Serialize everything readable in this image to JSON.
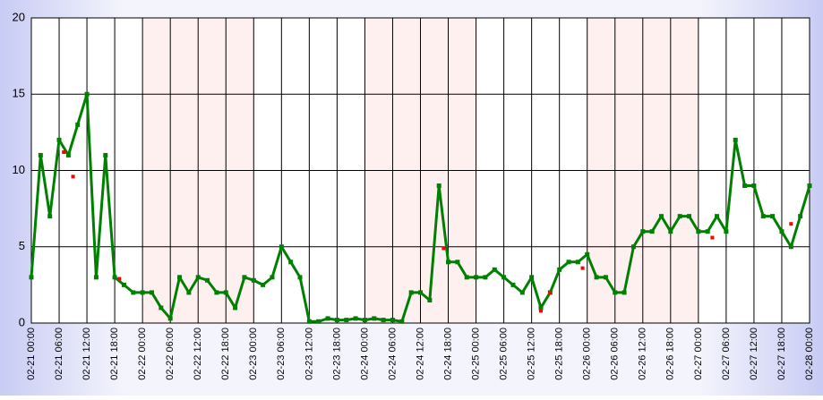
{
  "chart_data": {
    "type": "line",
    "x": [
      "02-21 00:00",
      "02-21 02:00",
      "02-21 04:00",
      "02-21 06:00",
      "02-21 08:00",
      "02-21 10:00",
      "02-21 12:00",
      "02-21 14:00",
      "02-21 16:00",
      "02-21 18:00",
      "02-21 20:00",
      "02-21 22:00",
      "02-22 00:00",
      "02-22 02:00",
      "02-22 04:00",
      "02-22 06:00",
      "02-22 08:00",
      "02-22 10:00",
      "02-22 12:00",
      "02-22 14:00",
      "02-22 16:00",
      "02-22 18:00",
      "02-22 20:00",
      "02-22 22:00",
      "02-23 00:00",
      "02-23 02:00",
      "02-23 04:00",
      "02-23 06:00",
      "02-23 08:00",
      "02-23 10:00",
      "02-23 12:00",
      "02-23 14:00",
      "02-23 16:00",
      "02-23 18:00",
      "02-23 20:00",
      "02-23 22:00",
      "02-24 00:00",
      "02-24 02:00",
      "02-24 04:00",
      "02-24 06:00",
      "02-24 08:00",
      "02-24 10:00",
      "02-24 12:00",
      "02-24 14:00",
      "02-24 16:00",
      "02-24 18:00",
      "02-24 20:00",
      "02-24 22:00",
      "02-25 00:00",
      "02-25 02:00",
      "02-25 04:00",
      "02-25 06:00",
      "02-25 08:00",
      "02-25 10:00",
      "02-25 12:00",
      "02-25 14:00",
      "02-25 16:00",
      "02-25 18:00",
      "02-25 20:00",
      "02-25 22:00",
      "02-26 00:00",
      "02-26 02:00",
      "02-26 04:00",
      "02-26 06:00",
      "02-26 08:00",
      "02-26 10:00",
      "02-26 12:00",
      "02-26 14:00",
      "02-26 16:00",
      "02-26 18:00",
      "02-26 20:00",
      "02-26 22:00",
      "02-27 00:00",
      "02-27 02:00",
      "02-27 04:00",
      "02-27 06:00",
      "02-27 08:00",
      "02-27 10:00",
      "02-27 12:00",
      "02-27 14:00",
      "02-27 16:00",
      "02-27 18:00",
      "02-27 20:00",
      "02-27 22:00",
      "02-28 00:00"
    ],
    "series": [
      {
        "color": "#008000",
        "values": [
          3,
          11,
          7,
          12,
          11,
          13,
          15,
          3,
          11,
          3,
          2.5,
          2,
          2,
          2,
          1,
          0.3,
          3,
          2,
          3,
          2.8,
          2,
          2,
          1,
          3,
          2.8,
          2.5,
          3,
          5,
          4,
          3,
          0.1,
          0.1,
          0.3,
          0.2,
          0.2,
          0.3,
          0.2,
          0.3,
          0.2,
          0.2,
          0.1,
          2,
          2,
          1.5,
          9,
          4,
          4,
          3,
          3,
          3,
          3.5,
          3,
          2.5,
          2,
          3,
          1,
          2,
          3.5,
          4,
          4,
          4.5,
          3,
          3,
          2,
          2,
          5,
          6,
          6,
          7,
          6,
          7,
          7,
          6,
          6,
          7,
          6,
          12,
          9,
          9,
          7,
          7,
          6,
          5,
          7,
          9
        ]
      }
    ],
    "markers": {
      "color": "#ff0000",
      "x": [
        "02-21 07:00",
        "02-21 09:00",
        "02-21 19:00",
        "02-24 17:00",
        "02-25 14:00",
        "02-25 16:00",
        "02-25 23:00",
        "02-27 03:00",
        "02-27 20:00"
      ],
      "values": [
        11.2,
        9.6,
        2.9,
        4.9,
        0.8,
        2,
        3.6,
        5.6,
        6.5
      ]
    },
    "shaded": [
      [
        "02-22 00:00",
        "02-23 00:00"
      ],
      [
        "02-24 00:00",
        "02-25 00:00"
      ],
      [
        "02-26 00:00",
        "02-27 00:00"
      ]
    ],
    "shade_color": "#fff0f0",
    "xlim": [
      "02-21 00:00",
      "02-28 00:00"
    ],
    "xticks": [
      "02-21 00:00",
      "02-21 06:00",
      "02-21 12:00",
      "02-21 18:00",
      "02-22 00:00",
      "02-22 06:00",
      "02-22 12:00",
      "02-22 18:00",
      "02-23 00:00",
      "02-23 06:00",
      "02-23 12:00",
      "02-23 18:00",
      "02-24 00:00",
      "02-24 06:00",
      "02-24 12:00",
      "02-24 18:00",
      "02-25 00:00",
      "02-25 06:00",
      "02-25 12:00",
      "02-25 18:00",
      "02-26 00:00",
      "02-26 06:00",
      "02-26 12:00",
      "02-26 18:00",
      "02-27 00:00",
      "02-27 06:00",
      "02-27 12:00",
      "02-27 18:00",
      "02-28 00:00"
    ],
    "ylim": [
      0,
      20
    ],
    "yticks": [
      0,
      5,
      10,
      15,
      20
    ],
    "grid": true
  }
}
